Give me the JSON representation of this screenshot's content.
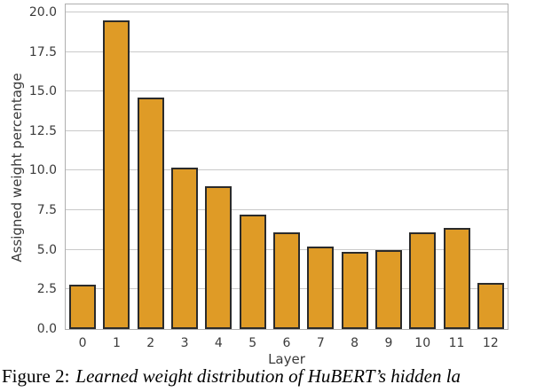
{
  "figure": {
    "caption_prefix": "Figure 2:",
    "caption_body": "Learned weight distribution of HuBERT’s hidden la"
  },
  "chart_data": {
    "type": "bar",
    "title": "",
    "xlabel": "Layer",
    "ylabel": "Assigned weight percentage",
    "categories": [
      "0",
      "1",
      "2",
      "3",
      "4",
      "5",
      "6",
      "7",
      "8",
      "9",
      "10",
      "11",
      "12"
    ],
    "values": [
      2.8,
      19.5,
      14.6,
      10.2,
      9.0,
      7.2,
      6.1,
      5.2,
      4.9,
      5.0,
      6.1,
      6.4,
      2.9
    ],
    "ylim": [
      0,
      20.5
    ],
    "y_ticks": [
      0,
      2.5,
      5,
      7.5,
      10,
      12.5,
      15,
      17.5,
      20
    ],
    "y_tick_labels": [
      "0.0",
      "2.5",
      "5.0",
      "7.5",
      "10.0",
      "12.5",
      "15.0",
      "17.5",
      "20.0"
    ],
    "grid": true,
    "legend": "none",
    "colors": {
      "bar_fill": "#DF9B26",
      "bar_edge": "#2B2B2B",
      "gridline": "#C9C9C9",
      "spine": "#AFAFAF",
      "tick_text": "#3A3A3A",
      "caption_text": "#000000"
    }
  }
}
